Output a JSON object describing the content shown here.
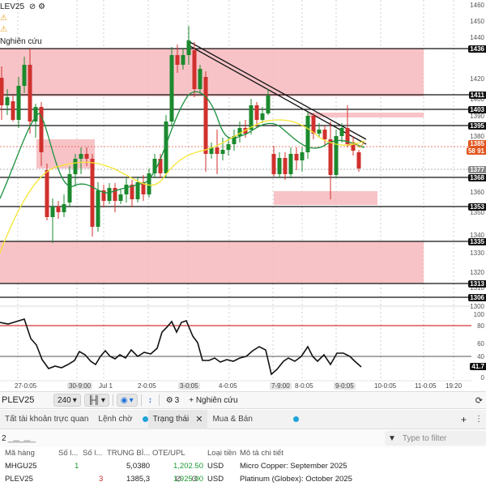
{
  "legend": {
    "line1": "LEV25",
    "line1_icons": "⊘ ⚙",
    "line2_icon": "⚠",
    "line3_icon": "⚠",
    "line4": "Nghiên cứu"
  },
  "price_axis": {
    "labels": [
      "1460",
      "1450",
      "1440",
      "1420",
      "1400",
      "1390",
      "1380",
      "1360",
      "1350",
      "1340",
      "1330",
      "1320",
      "1310",
      "1300"
    ],
    "tags": [
      {
        "text": "1436",
        "style": "dark"
      },
      {
        "text": "1411",
        "style": "dark"
      },
      {
        "text": "1403",
        "style": "dark"
      },
      {
        "text": "1395",
        "style": "dark"
      },
      {
        "text": "1385",
        "style": "orange"
      },
      {
        "text": "58 91",
        "style": "orange"
      },
      {
        "text": "1377",
        "style": "gray"
      },
      {
        "text": "1368",
        "style": "dark"
      },
      {
        "text": "1353",
        "style": "dark"
      },
      {
        "text": "1335",
        "style": "dark"
      },
      {
        "text": "1313",
        "style": "dark"
      },
      {
        "text": "1306",
        "style": "dark"
      }
    ]
  },
  "rsi_axis": {
    "labels": [
      "100",
      "80",
      "60",
      "40",
      "0"
    ],
    "tag": "41.7"
  },
  "time_axis": {
    "labels": [
      {
        "text": "27-0:05",
        "bold": false
      },
      {
        "text": "30-9:00",
        "bold": true
      },
      {
        "text": "Jul 1",
        "bold": false
      },
      {
        "text": "2-0:05",
        "bold": false
      },
      {
        "text": "3-0:05",
        "bold": true
      },
      {
        "text": "4-0:05",
        "bold": false
      },
      {
        "text": "7-9:00",
        "bold": true
      },
      {
        "text": "8-0:05",
        "bold": false
      },
      {
        "text": "9-0:05",
        "bold": true
      },
      {
        "text": "10-0:05",
        "bold": false
      },
      {
        "text": "11-0:05",
        "bold": false
      },
      {
        "text": "19:20",
        "bold": false
      }
    ]
  },
  "toolbar": {
    "symbol": "PLEV25",
    "interval": "240",
    "research_label": "+ Nghiên cứu",
    "settings_count": "3"
  },
  "tabs": [
    {
      "label": "Tất tài khoản trực quan",
      "active": false,
      "dot": false,
      "close": false
    },
    {
      "label": "Lệnh chờ",
      "active": false,
      "dot": false,
      "close": false
    },
    {
      "label": "Trạng thái",
      "active": true,
      "dot": true,
      "close": true
    },
    {
      "label": "Mua & Bán",
      "active": false,
      "dot": true,
      "close": false
    }
  ],
  "tab_more": "+",
  "filter": {
    "count": "2",
    "placeholder": "Type to filter"
  },
  "table": {
    "headers": [
      "Mã hàng",
      "Số l...",
      "Số l...",
      "TRUNG BÌ...",
      "OTE/UPL",
      "Loại tiền",
      "Mô tả chi tiết"
    ],
    "rows": [
      {
        "symbol": "MHGU25",
        "long": "1",
        "short": "",
        "avg": "5,0380",
        "ote": "1,202.50",
        "currency": "USD",
        "desc": "Micro Copper: September 2025"
      },
      {
        "symbol": "PLEV25",
        "long": "",
        "short": "3",
        "avg": "1385,3",
        "ote": "1,925.00",
        "currency": "USD",
        "desc": "Platinum (Globex): October 2025"
      }
    ]
  },
  "colors": {
    "up": "#1b8a2e",
    "down": "#d0312d",
    "zone": "#f7b9bd",
    "ma_fast": "#1a8f3c",
    "ma_slow": "#f5e632",
    "accent": "#1e6fd9"
  }
}
